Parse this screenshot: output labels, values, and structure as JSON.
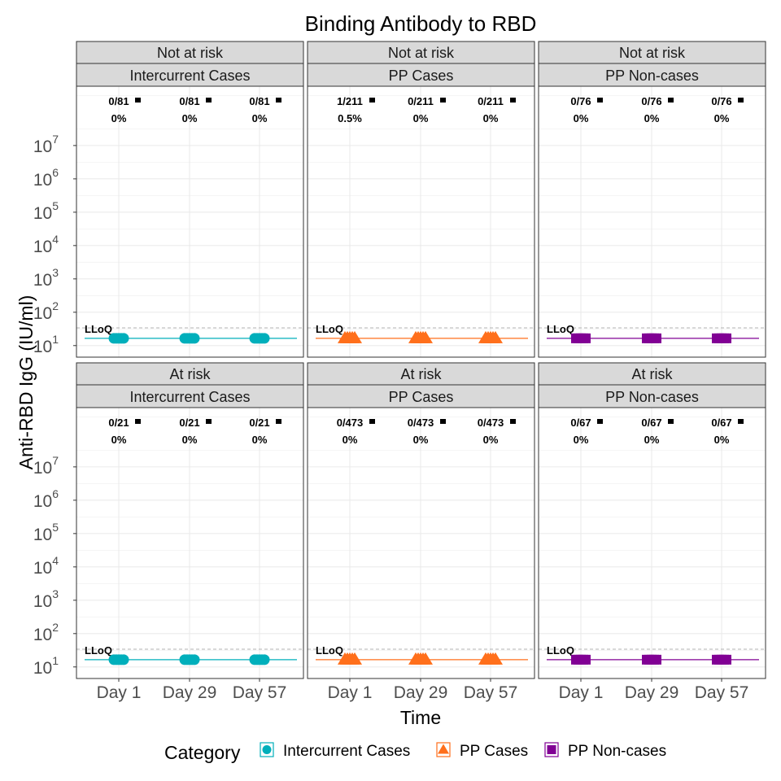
{
  "chart_data": {
    "type": "scatter",
    "title": "Binding Antibody to RBD",
    "xlabel": "Time",
    "ylabel": "Anti-RBD IgG (IU/ml)",
    "x_categories": [
      "Day 1",
      "Day 29",
      "Day 57"
    ],
    "y_scale": "log10",
    "y_range": [
      4.5,
      600000000
    ],
    "y_ticks": [
      {
        "value": 10,
        "base": "10",
        "exp": "1"
      },
      {
        "value": 100,
        "base": "10",
        "exp": "2"
      },
      {
        "value": 1000,
        "base": "10",
        "exp": "3"
      },
      {
        "value": 10000,
        "base": "10",
        "exp": "4"
      },
      {
        "value": 100000,
        "base": "10",
        "exp": "5"
      },
      {
        "value": 1000000,
        "base": "10",
        "exp": "6"
      },
      {
        "value": 10000000,
        "base": "10",
        "exp": "7"
      }
    ],
    "lloq_value": 34,
    "lloq_label": "LLoQ",
    "grid": true,
    "legend": {
      "title": "Category",
      "position": "bottom",
      "items": [
        {
          "label": "Intercurrent Cases",
          "shape": "circle",
          "color": "#00AFBB"
        },
        {
          "label": "PP Cases",
          "shape": "triangle",
          "color": "#FF6F1B"
        },
        {
          "label": "PP Non-cases",
          "shape": "square",
          "color": "#810094"
        }
      ]
    },
    "panels": [
      {
        "risk": "Not at risk",
        "group": "Intercurrent Cases",
        "color": "#00AFBB",
        "shape": "circle",
        "annotations": [
          {
            "time": "Day 1",
            "count": "0/81",
            "pct": "0%"
          },
          {
            "time": "Day 29",
            "count": "0/81",
            "pct": "0%"
          },
          {
            "time": "Day 57",
            "count": "0/81",
            "pct": "0%"
          }
        ],
        "median_values": [
          16.5,
          16.5,
          16.5
        ]
      },
      {
        "risk": "Not at risk",
        "group": "PP Cases",
        "color": "#FF6F1B",
        "shape": "triangle",
        "annotations": [
          {
            "time": "Day 1",
            "count": "1/211",
            "pct": "0.5%"
          },
          {
            "time": "Day 29",
            "count": "0/211",
            "pct": "0%"
          },
          {
            "time": "Day 57",
            "count": "0/211",
            "pct": "0%"
          }
        ],
        "median_values": [
          16.5,
          16.5,
          16.5
        ]
      },
      {
        "risk": "Not at risk",
        "group": "PP Non-cases",
        "color": "#810094",
        "shape": "square",
        "annotations": [
          {
            "time": "Day 1",
            "count": "0/76",
            "pct": "0%"
          },
          {
            "time": "Day 29",
            "count": "0/76",
            "pct": "0%"
          },
          {
            "time": "Day 57",
            "count": "0/76",
            "pct": "0%"
          }
        ],
        "median_values": [
          16.5,
          16.5,
          16.5
        ]
      },
      {
        "risk": "At risk",
        "group": "Intercurrent Cases",
        "color": "#00AFBB",
        "shape": "circle",
        "annotations": [
          {
            "time": "Day 1",
            "count": "0/21",
            "pct": "0%"
          },
          {
            "time": "Day 29",
            "count": "0/21",
            "pct": "0%"
          },
          {
            "time": "Day 57",
            "count": "0/21",
            "pct": "0%"
          }
        ],
        "median_values": [
          16.5,
          16.5,
          16.5
        ]
      },
      {
        "risk": "At risk",
        "group": "PP Cases",
        "color": "#FF6F1B",
        "shape": "triangle",
        "annotations": [
          {
            "time": "Day 1",
            "count": "0/473",
            "pct": "0%"
          },
          {
            "time": "Day 29",
            "count": "0/473",
            "pct": "0%"
          },
          {
            "time": "Day 57",
            "count": "0/473",
            "pct": "0%"
          }
        ],
        "median_values": [
          16.5,
          16.5,
          16.5
        ]
      },
      {
        "risk": "At risk",
        "group": "PP Non-cases",
        "color": "#810094",
        "shape": "square",
        "annotations": [
          {
            "time": "Day 1",
            "count": "0/67",
            "pct": "0%"
          },
          {
            "time": "Day 29",
            "count": "0/67",
            "pct": "0%"
          },
          {
            "time": "Day 57",
            "count": "0/67",
            "pct": "0%"
          }
        ],
        "median_values": [
          16.5,
          16.5,
          16.5
        ]
      }
    ]
  }
}
